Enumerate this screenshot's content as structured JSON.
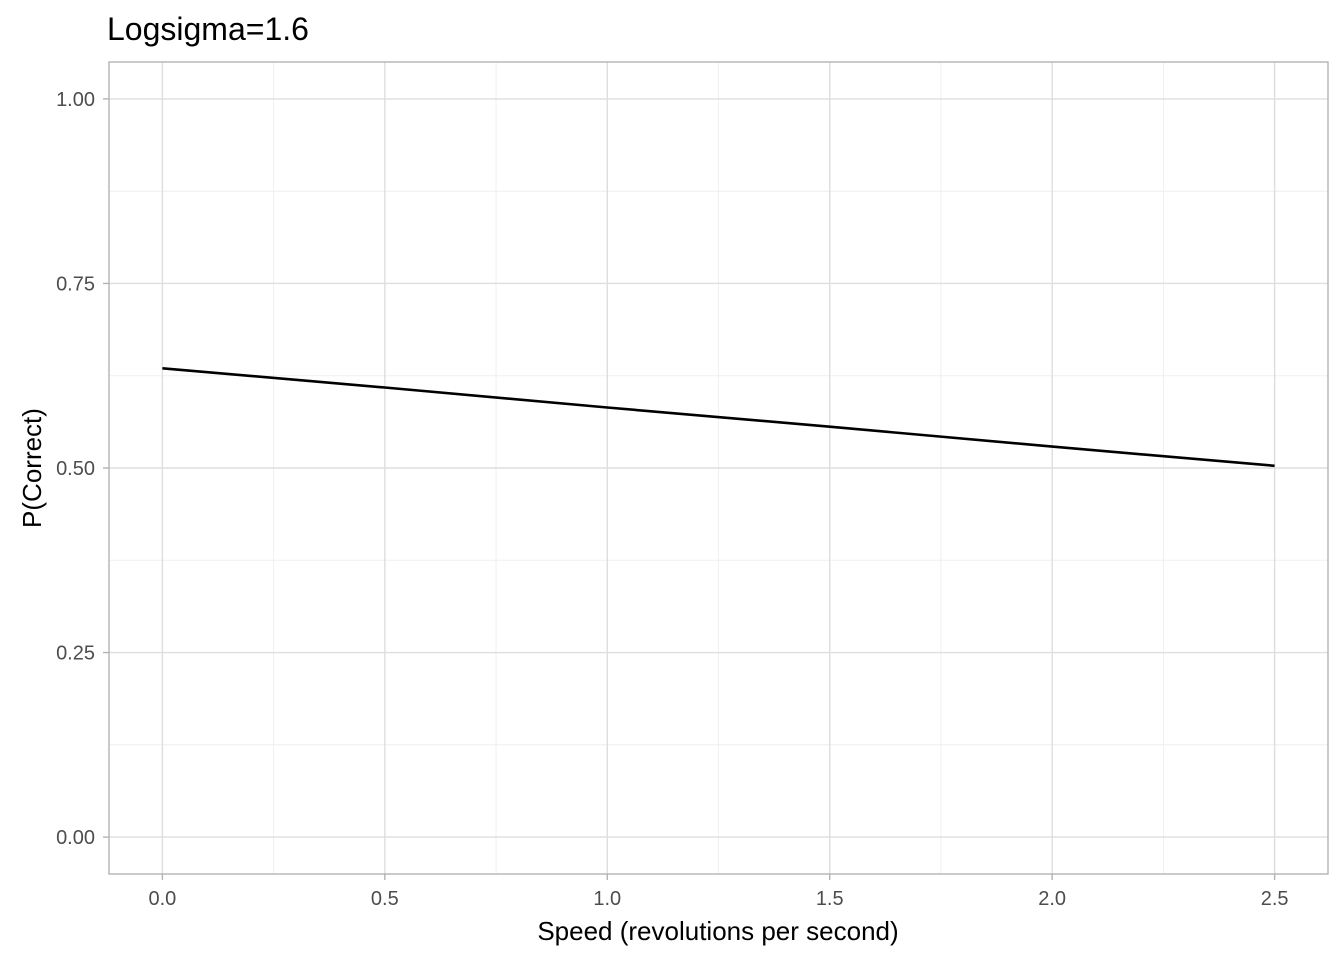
{
  "chart_data": {
    "type": "line",
    "title": "Logsigma=1.6",
    "xlabel": "Speed (revolutions per second)",
    "ylabel": "P(Correct)",
    "xlim": [
      -0.12,
      2.62
    ],
    "ylim": [
      -0.05,
      1.05
    ],
    "x_ticks": [
      0.0,
      0.5,
      1.0,
      1.5,
      2.0,
      2.5
    ],
    "x_tick_labels": [
      "0.0",
      "0.5",
      "1.0",
      "1.5",
      "2.0",
      "2.5"
    ],
    "y_ticks": [
      0.0,
      0.25,
      0.5,
      0.75,
      1.0
    ],
    "y_tick_labels": [
      "0.00",
      "0.25",
      "0.50",
      "0.75",
      "1.00"
    ],
    "grid": true,
    "series": [
      {
        "color": "#000000",
        "x": [
          0.0,
          0.5,
          1.0,
          1.5,
          2.0,
          2.5
        ],
        "y": [
          0.635,
          0.609,
          0.582,
          0.556,
          0.529,
          0.503
        ]
      }
    ]
  }
}
